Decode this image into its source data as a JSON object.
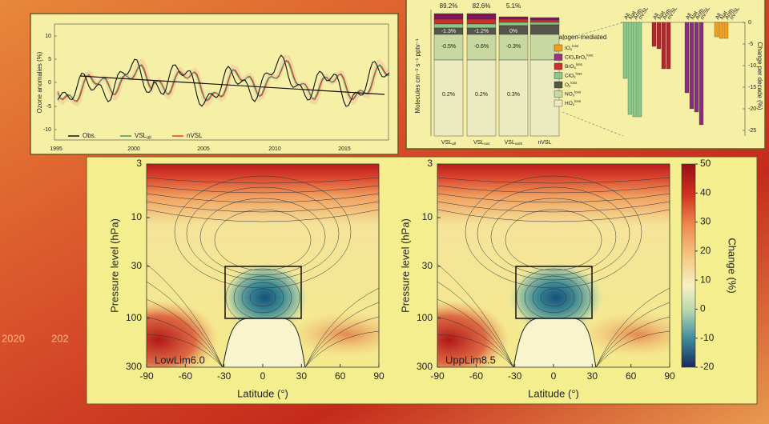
{
  "background_text": [
    "2020",
    "202"
  ],
  "ozone_panel": {
    "y_label": "Ozone anomalies (%)",
    "y_ticks": [
      "10",
      "5",
      "0",
      "-5",
      "-10"
    ],
    "x_ticks": [
      "1995",
      "2000",
      "2005",
      "2010",
      "2015"
    ],
    "legend": [
      {
        "name": "Obs."
      },
      {
        "name": "VSL",
        "sub": "all"
      },
      {
        "name": "nVSL"
      }
    ]
  },
  "budget_panel": {
    "y_label": "Molecules cm⁻³ s⁻¹ pptv⁻¹",
    "bars": [
      {
        "name": "VSL",
        "sub": "all",
        "top_label": "89.2%",
        "labels": [
          "-1.3%",
          "-0.5%",
          "0.2%"
        ]
      },
      {
        "name": "VSL",
        "sub": "nat",
        "top_label": "82.6%",
        "labels": [
          "-1.2%",
          "-0.6%",
          "0.2%"
        ]
      },
      {
        "name": "VSL",
        "sub": "anth",
        "top_label": "5.1%",
        "labels": [
          "0%",
          "-0.3%",
          "0.3%"
        ]
      },
      {
        "name": "nVSL"
      }
    ],
    "legend_title": "Halogen-mediated",
    "legend": [
      {
        "name": "IO",
        "sub": "x",
        "sup": "loss"
      },
      {
        "name": "ClO",
        "sub": "x",
        "name2": "BrO",
        "sub2": "x",
        "sup": "loss"
      },
      {
        "name": "BrO",
        "sub": "x",
        "sup": "loss"
      },
      {
        "name": "ClO",
        "sub": "x",
        "sup": "loss"
      },
      {
        "name": "O",
        "sub": "x",
        "sup": "loss"
      },
      {
        "name": "NO",
        "sub": "x",
        "sup": "loss"
      },
      {
        "name": "HO",
        "sub": "x",
        "sup": "loss"
      }
    ]
  },
  "trend_panel": {
    "y_label": "Change per decade (%)",
    "y_ticks": [
      "0",
      "-5",
      "-10",
      "-15",
      "-20",
      "-25"
    ],
    "group_labels": [
      "All",
      "Nat",
      "Anth",
      "nVSL"
    ]
  },
  "ozone_maps": {
    "y_label": "Pressure level (hPa)",
    "y_ticks": [
      "3",
      "10",
      "30",
      "100",
      "300"
    ],
    "x_label": "Latitude (°)",
    "x_ticks": [
      "-90",
      "-60",
      "-30",
      "0",
      "30",
      "60",
      "90"
    ],
    "maps": [
      "LowLim6.0",
      "UppLim8.5"
    ],
    "colorbar": {
      "label": "Change (%)",
      "ticks": [
        "50",
        "40",
        "30",
        "20",
        "10",
        "0",
        "-10",
        "-20"
      ]
    }
  }
}
